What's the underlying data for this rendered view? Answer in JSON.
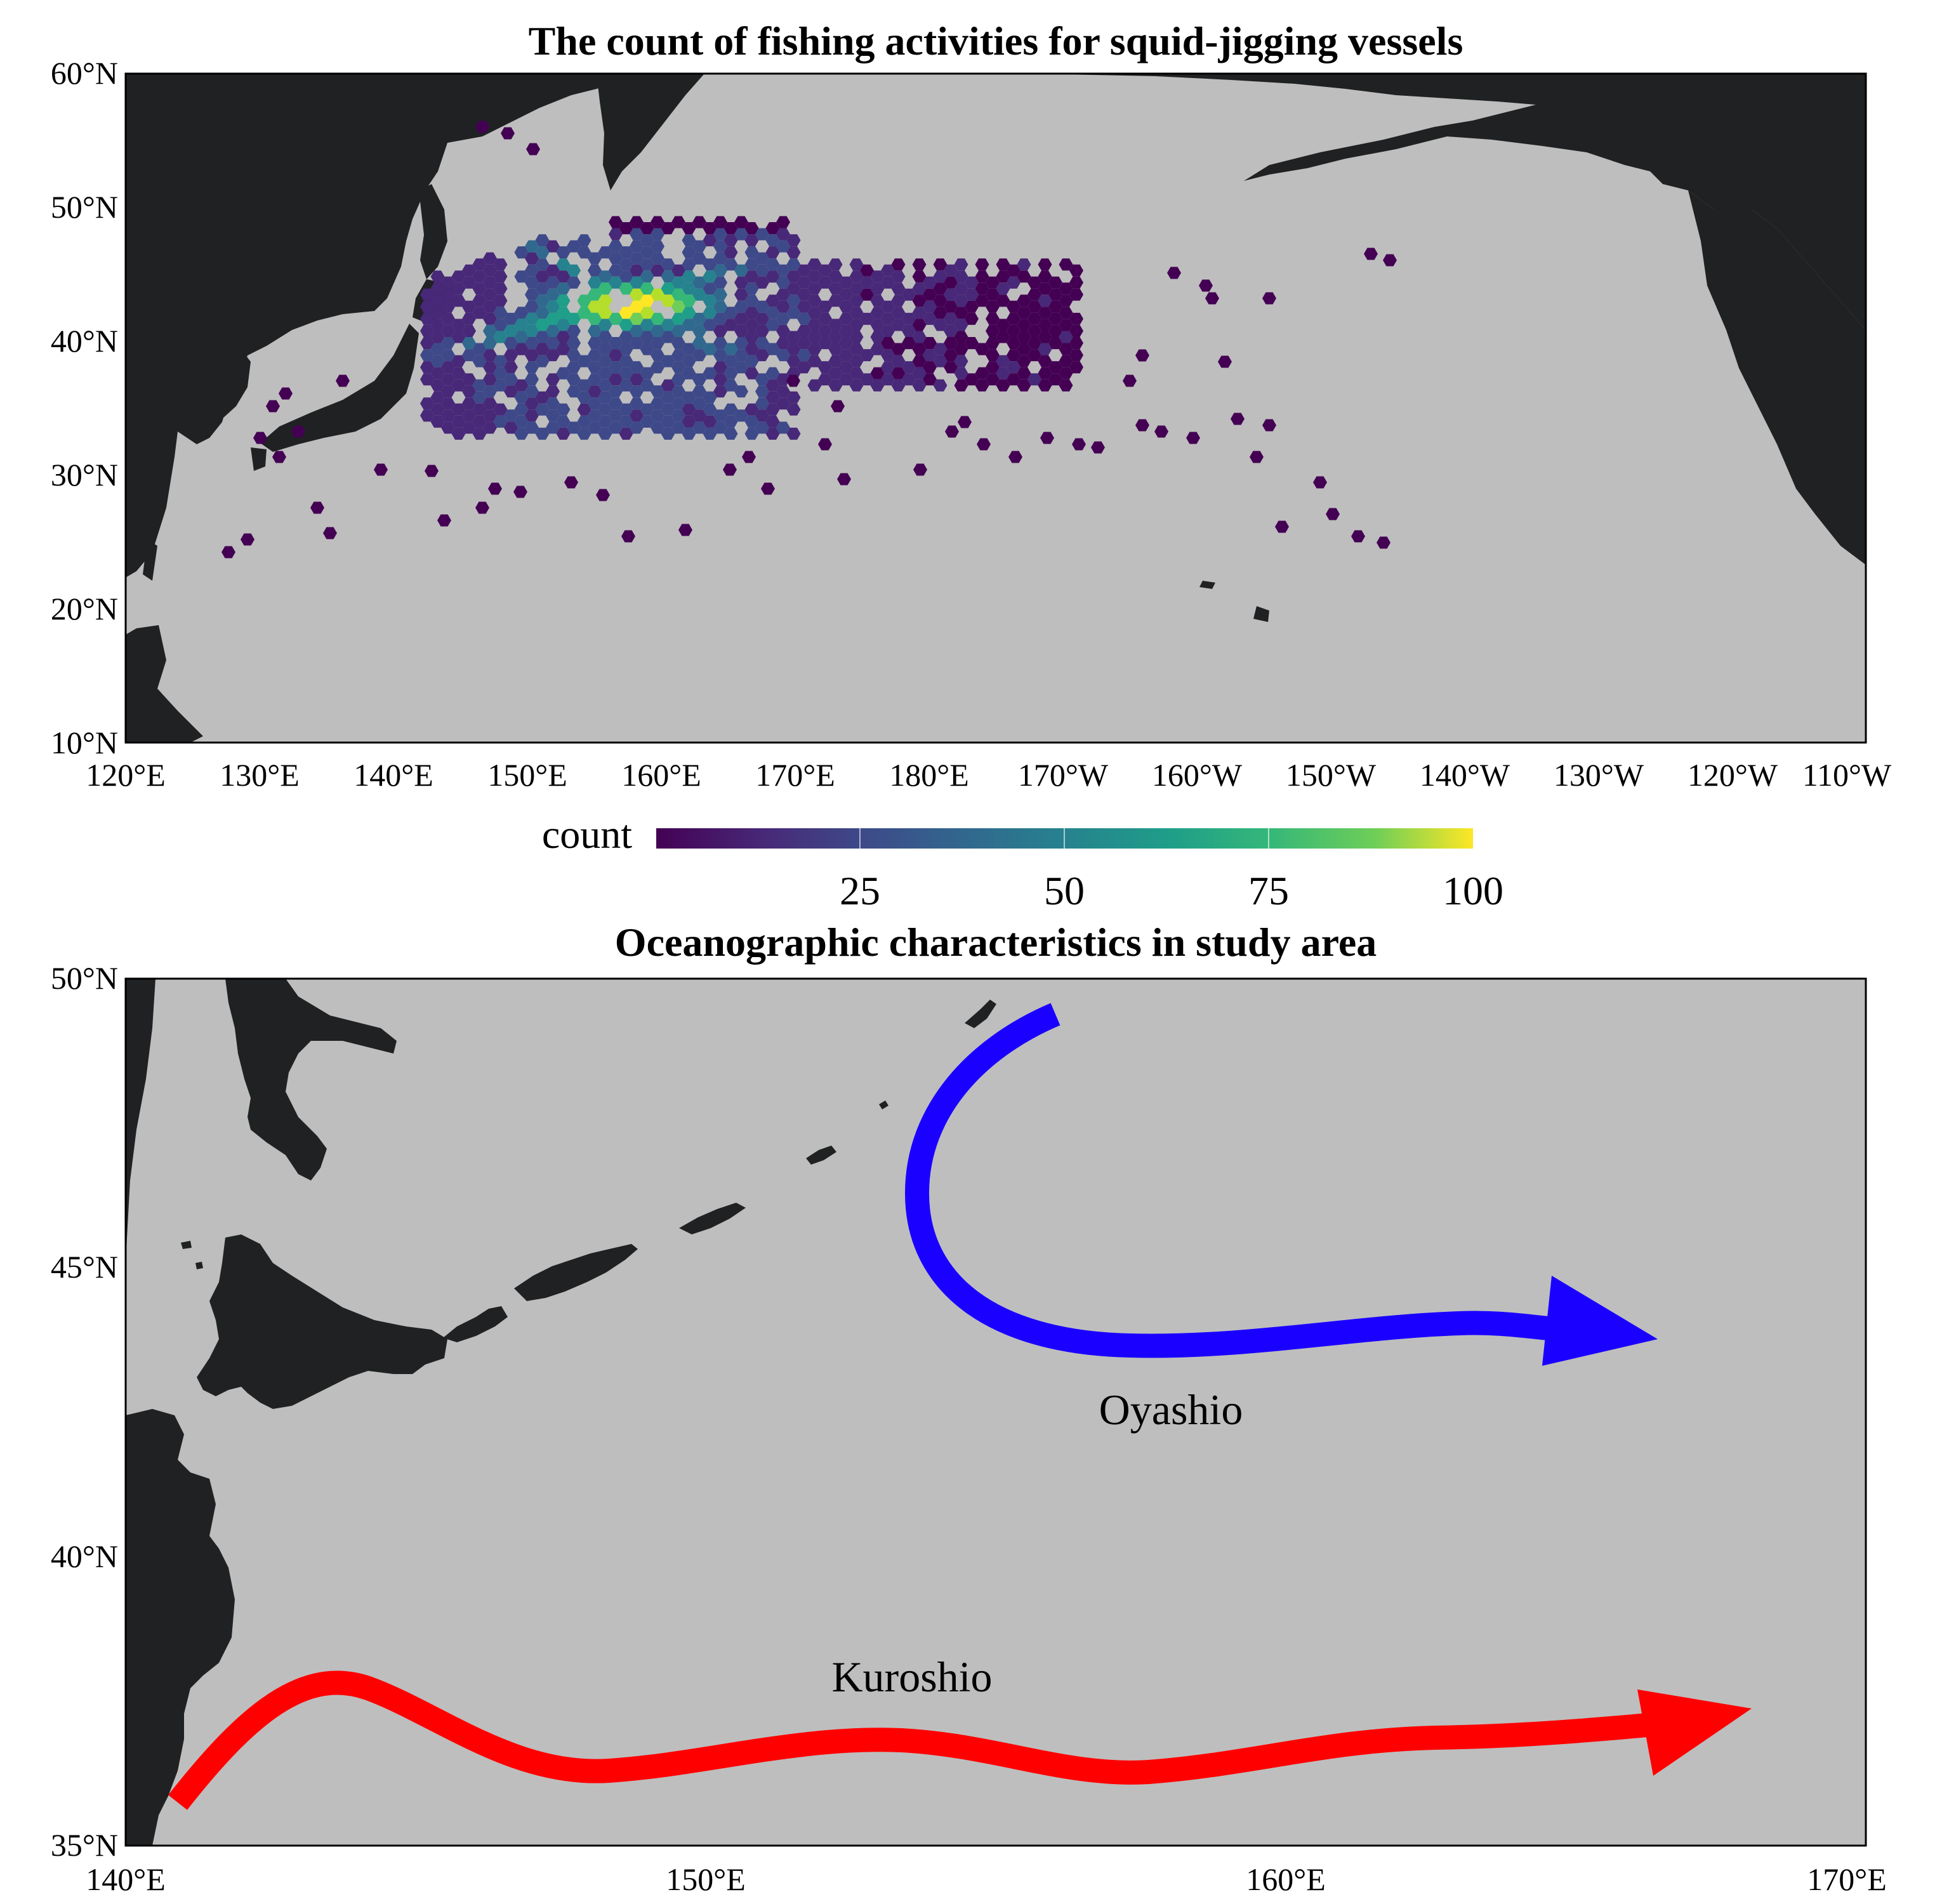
{
  "map1": {
    "title": "The count of fishing activities for squid-jigging vessels",
    "lat_ticks": [
      "60°N",
      "50°N",
      "40°N",
      "30°N",
      "20°N",
      "10°N"
    ],
    "lon_ticks": [
      "120°E",
      "130°E",
      "140°E",
      "150°E",
      "160°E",
      "170°E",
      "180°E",
      "170°W",
      "160°W",
      "150°W",
      "140°W",
      "130°W",
      "120°W",
      "110°W"
    ],
    "extent": {
      "lon_min": 120,
      "lon_max": 250,
      "lat_min": 10,
      "lat_max": 60
    },
    "colors": {
      "ocean": "#bebebe",
      "land": "#202122"
    }
  },
  "colorbar": {
    "label": "count",
    "ticks": [
      "25",
      "50",
      "75",
      "100"
    ],
    "range": [
      0,
      100
    ],
    "colormap": "viridis"
  },
  "map2": {
    "title": "Oceanographic characteristics in study area",
    "lat_ticks": [
      "50°N",
      "45°N",
      "40°N",
      "35°N"
    ],
    "lon_ticks": [
      "140°E",
      "150°E",
      "160°E",
      "170°E"
    ],
    "extent": {
      "lon_min": 140,
      "lon_max": 170,
      "lat_min": 35,
      "lat_max": 50
    },
    "currents": [
      {
        "name": "Oyashio",
        "color": "#1a00ff"
      },
      {
        "name": "Kuroshio",
        "color": "#ff0000"
      }
    ]
  }
}
